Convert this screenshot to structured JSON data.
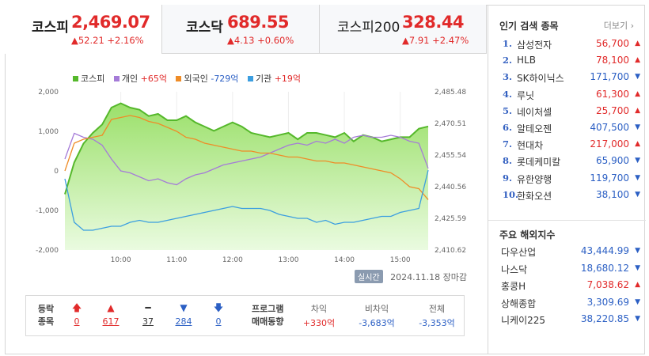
{
  "indices": [
    {
      "name": "코스피",
      "value": "2,469.07",
      "change": "▲52.21 +2.16%",
      "active": true
    },
    {
      "name": "코스닥",
      "value": "689.55",
      "change": "▲4.13 +0.60%",
      "active": false
    },
    {
      "name": "코스피200",
      "value": "328.44",
      "change": "▲7.91 +2.47%",
      "active": false
    }
  ],
  "legend": {
    "kospi": {
      "label": "코스피",
      "color": "#55b82b"
    },
    "individual": {
      "label": "개인",
      "value": "+65억",
      "color": "#a57bd8"
    },
    "foreign": {
      "label": "외국인",
      "value": "-729억",
      "color": "#ef8c27"
    },
    "institution": {
      "label": "기관",
      "value": "+19억",
      "color": "#3b9ee0"
    }
  },
  "chart_data": {
    "type": "line",
    "x": [
      "09:00",
      "09:10",
      "09:20",
      "09:30",
      "09:40",
      "09:50",
      "10:00",
      "10:10",
      "10:20",
      "10:30",
      "10:40",
      "10:50",
      "11:00",
      "11:10",
      "11:20",
      "11:30",
      "11:40",
      "11:50",
      "12:00",
      "12:10",
      "12:20",
      "12:30",
      "12:40",
      "12:50",
      "13:00",
      "13:10",
      "13:20",
      "13:30",
      "13:40",
      "13:50",
      "14:00",
      "14:10",
      "14:20",
      "14:30",
      "14:40",
      "14:50",
      "15:00",
      "15:10",
      "15:20",
      "15:30"
    ],
    "left_axis": {
      "ylim": [
        -2000,
        2000
      ],
      "ticks": [
        "2,000",
        "1,000",
        "0",
        "-1,000",
        "-2,000"
      ]
    },
    "right_axis": {
      "ylim": [
        2410.62,
        2485.48
      ],
      "ticks": [
        "2,485.48",
        "2,470.51",
        "2,455.54",
        "2,440.56",
        "2,425.59",
        "2,410.62"
      ]
    },
    "x_ticks": [
      "10:00",
      "11:00",
      "12:00",
      "13:00",
      "14:00",
      "15:00"
    ],
    "baseline_right": 2414.0,
    "series": [
      {
        "name": "코스피",
        "axis": "right",
        "values": [
          2437,
          2452,
          2461,
          2466,
          2470,
          2478,
          2480,
          2478,
          2477,
          2474,
          2475,
          2472,
          2472,
          2474,
          2471,
          2469,
          2467,
          2469,
          2471,
          2469,
          2466,
          2465,
          2464,
          2465,
          2466,
          2463,
          2466,
          2466,
          2465,
          2464,
          2466,
          2462,
          2465,
          2464,
          2462,
          2463,
          2464,
          2464,
          2468,
          2469.07
        ]
      },
      {
        "name": "개인",
        "axis": "left",
        "values": [
          300,
          950,
          850,
          800,
          650,
          300,
          0,
          -50,
          -150,
          -250,
          -200,
          -300,
          -350,
          -200,
          -100,
          -50,
          50,
          150,
          200,
          250,
          300,
          350,
          450,
          550,
          650,
          700,
          650,
          750,
          700,
          800,
          700,
          850,
          900,
          850,
          850,
          900,
          850,
          750,
          700,
          65
        ]
      },
      {
        "name": "외국인",
        "axis": "left",
        "values": [
          0,
          700,
          800,
          850,
          900,
          1300,
          1350,
          1400,
          1350,
          1250,
          1200,
          1100,
          1000,
          850,
          800,
          700,
          650,
          600,
          550,
          500,
          500,
          450,
          450,
          400,
          350,
          350,
          300,
          250,
          250,
          200,
          200,
          150,
          100,
          50,
          0,
          -50,
          -200,
          -400,
          -450,
          -729
        ]
      },
      {
        "name": "기관",
        "axis": "left",
        "values": [
          -200,
          -1300,
          -1500,
          -1500,
          -1450,
          -1400,
          -1400,
          -1300,
          -1250,
          -1300,
          -1300,
          -1250,
          -1200,
          -1150,
          -1100,
          -1050,
          -1000,
          -950,
          -900,
          -950,
          -950,
          -950,
          -1000,
          -1100,
          -1150,
          -1200,
          -1200,
          -1300,
          -1250,
          -1350,
          -1300,
          -1300,
          -1250,
          -1200,
          -1150,
          -1150,
          -1050,
          -1000,
          -950,
          19
        ]
      }
    ]
  },
  "timestamp": {
    "realtime": "실시간",
    "date": "2024.11.18",
    "status": "장마감"
  },
  "breadth": {
    "label1": "등락",
    "label2": "종목",
    "items": [
      {
        "icon": "🡅",
        "value": "0",
        "cls": "up"
      },
      {
        "icon": "▲",
        "value": "617",
        "cls": "up"
      },
      {
        "icon": "━",
        "value": "37",
        "cls": "flat"
      },
      {
        "icon": "▼",
        "value": "284",
        "cls": "down"
      },
      {
        "icon": "🡇",
        "value": "0",
        "cls": "down"
      }
    ]
  },
  "program": {
    "title1": "프로그램",
    "title2": "매매동향",
    "cols": [
      {
        "head": "차익",
        "value": "+330억",
        "cls": "up"
      },
      {
        "head": "비차익",
        "value": "-3,683억",
        "cls": "down"
      },
      {
        "head": "전체",
        "value": "-3,353억",
        "cls": "down"
      }
    ]
  },
  "popular": {
    "title": "인기 검색 종목",
    "more": "더보기",
    "items": [
      {
        "rank": "1.",
        "name": "삼성전자",
        "price": "56,700",
        "dir": "up"
      },
      {
        "rank": "2.",
        "name": "HLB",
        "price": "78,100",
        "dir": "up"
      },
      {
        "rank": "3.",
        "name": "SK하이닉스",
        "price": "171,700",
        "dir": "down"
      },
      {
        "rank": "4.",
        "name": "루닛",
        "price": "61,300",
        "dir": "up"
      },
      {
        "rank": "5.",
        "name": "네이처셀",
        "price": "25,700",
        "dir": "up"
      },
      {
        "rank": "6.",
        "name": "알테오젠",
        "price": "407,500",
        "dir": "down"
      },
      {
        "rank": "7.",
        "name": "현대차",
        "price": "217,000",
        "dir": "up"
      },
      {
        "rank": "8.",
        "name": "롯데케미칼",
        "price": "65,900",
        "dir": "down"
      },
      {
        "rank": "9.",
        "name": "유한양행",
        "price": "119,700",
        "dir": "down"
      },
      {
        "rank": "10.",
        "name": "한화오션",
        "price": "38,100",
        "dir": "down"
      }
    ]
  },
  "overseas": {
    "title": "주요 해외지수",
    "items": [
      {
        "name": "다우산업",
        "value": "43,444.99",
        "dir": "down"
      },
      {
        "name": "나스닥",
        "value": "18,680.12",
        "dir": "down"
      },
      {
        "name": "홍콩H",
        "value": "7,038.62",
        "dir": "up"
      },
      {
        "name": "상해종합",
        "value": "3,309.69",
        "dir": "down"
      },
      {
        "name": "니케이225",
        "value": "38,220.85",
        "dir": "down"
      }
    ]
  }
}
